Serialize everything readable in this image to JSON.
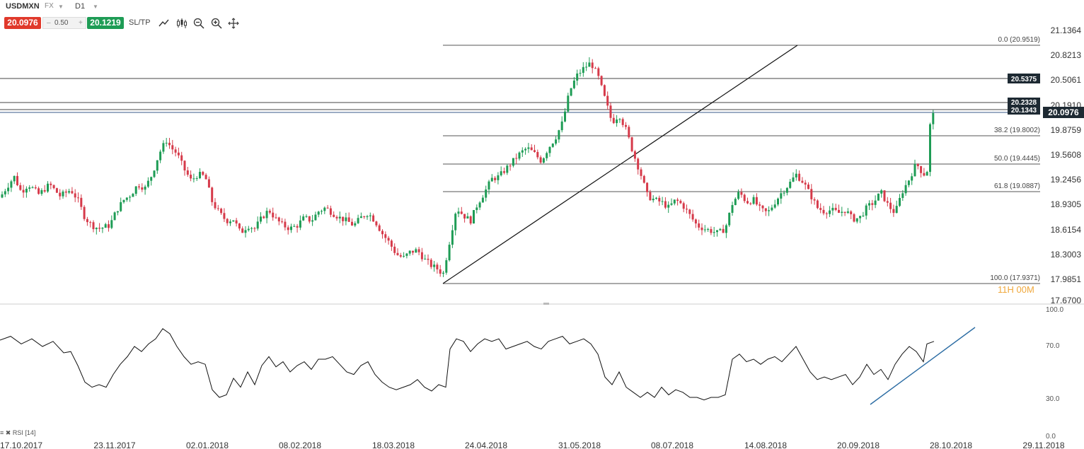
{
  "instrument": {
    "symbol": "USDMXN",
    "type": "FX",
    "timeframe": "D1"
  },
  "trade": {
    "sell_price": "20.0976",
    "quantity": "0.50",
    "buy_price": "20.1219",
    "sltp_label": "SL/TP",
    "minus": "–",
    "plus": "+"
  },
  "toolbar": {
    "tools": [
      "line-chart-icon",
      "candlestick-icon",
      "zoom-out-icon",
      "zoom-in-icon",
      "crosshair-move-icon"
    ]
  },
  "price_axis": {
    "ticks": [
      "21.1364",
      "20.8213",
      "20.5061",
      "20.1910",
      "19.8759",
      "19.5608",
      "19.2456",
      "18.9305",
      "18.6154",
      "18.3003",
      "17.9851",
      "17.6700"
    ]
  },
  "price_tags": {
    "current": "20.0976",
    "levels": [
      "20.5375",
      "20.2328",
      "20.1343"
    ]
  },
  "fibonacci": {
    "levels": [
      "0.0 (20.9519)",
      "38.2 (19.8002)",
      "50.0 (19.4445)",
      "61.8 (19.0887)",
      "100.0 (17.9371)"
    ]
  },
  "timer": "11H 00M",
  "rsi": {
    "label": "RSI [14]",
    "ticks": [
      "100.0",
      "70.0",
      "30.0",
      "0.0"
    ]
  },
  "date_axis": {
    "labels": [
      "17.10.2017",
      "23.11.2017",
      "02.01.2018",
      "08.02.2018",
      "18.03.2018",
      "24.04.2018",
      "31.05.2018",
      "08.07.2018",
      "14.08.2018",
      "20.09.2018",
      "28.10.2018",
      "29.11.2018"
    ]
  },
  "chart_data": {
    "type": "candlestick",
    "title": "USDMXN",
    "x_range": [
      "17.10.2017",
      "29.11.2018"
    ],
    "y_range": [
      17.67,
      21.1364
    ],
    "close_series": [
      [
        0,
        18.98
      ],
      [
        10,
        19.12
      ],
      [
        20,
        19.25
      ],
      [
        30,
        19.05
      ],
      [
        40,
        19.15
      ],
      [
        55,
        19.02
      ],
      [
        70,
        19.15
      ],
      [
        85,
        19.0
      ],
      [
        100,
        19.08
      ],
      [
        110,
        18.95
      ],
      [
        120,
        18.72
      ],
      [
        130,
        18.62
      ],
      [
        140,
        18.58
      ],
      [
        155,
        18.62
      ],
      [
        165,
        18.82
      ],
      [
        175,
        18.95
      ],
      [
        185,
        19.02
      ],
      [
        195,
        19.15
      ],
      [
        205,
        19.1
      ],
      [
        215,
        19.28
      ],
      [
        225,
        19.55
      ],
      [
        235,
        19.72
      ],
      [
        242,
        19.62
      ],
      [
        250,
        19.55
      ],
      [
        260,
        19.35
      ],
      [
        270,
        19.2
      ],
      [
        280,
        19.28
      ],
      [
        290,
        19.25
      ],
      [
        300,
        18.92
      ],
      [
        310,
        18.78
      ],
      [
        320,
        18.68
      ],
      [
        330,
        18.7
      ],
      [
        340,
        18.52
      ],
      [
        350,
        18.62
      ],
      [
        360,
        18.58
      ],
      [
        370,
        18.72
      ],
      [
        380,
        18.82
      ],
      [
        390,
        18.7
      ],
      [
        400,
        18.62
      ],
      [
        410,
        18.58
      ],
      [
        420,
        18.62
      ],
      [
        430,
        18.72
      ],
      [
        440,
        18.68
      ],
      [
        450,
        18.8
      ],
      [
        460,
        18.85
      ],
      [
        470,
        18.78
      ],
      [
        480,
        18.72
      ],
      [
        490,
        18.68
      ],
      [
        500,
        18.62
      ],
      [
        510,
        18.72
      ],
      [
        520,
        18.78
      ],
      [
        530,
        18.68
      ],
      [
        540,
        18.52
      ],
      [
        550,
        18.4
      ],
      [
        560,
        18.25
      ],
      [
        570,
        18.2
      ],
      [
        580,
        18.28
      ],
      [
        590,
        18.3
      ],
      [
        600,
        18.18
      ],
      [
        610,
        18.1
      ],
      [
        620,
        18.05
      ],
      [
        626,
        17.98
      ],
      [
        635,
        18.4
      ],
      [
        645,
        18.85
      ],
      [
        655,
        18.75
      ],
      [
        665,
        18.68
      ],
      [
        675,
        18.9
      ],
      [
        685,
        19.05
      ],
      [
        695,
        19.22
      ],
      [
        705,
        19.25
      ],
      [
        715,
        19.35
      ],
      [
        725,
        19.45
      ],
      [
        735,
        19.55
      ],
      [
        745,
        19.62
      ],
      [
        755,
        19.55
      ],
      [
        765,
        19.45
      ],
      [
        775,
        19.62
      ],
      [
        785,
        19.75
      ],
      [
        795,
        19.95
      ],
      [
        805,
        20.35
      ],
      [
        815,
        20.55
      ],
      [
        825,
        20.65
      ],
      [
        835,
        20.72
      ],
      [
        845,
        20.55
      ],
      [
        855,
        20.25
      ],
      [
        865,
        19.95
      ],
      [
        875,
        20.05
      ],
      [
        885,
        19.85
      ],
      [
        895,
        19.55
      ],
      [
        905,
        19.3
      ],
      [
        915,
        19.0
      ],
      [
        925,
        18.95
      ],
      [
        935,
        18.92
      ],
      [
        945,
        18.85
      ],
      [
        955,
        18.95
      ],
      [
        965,
        18.88
      ],
      [
        975,
        18.75
      ],
      [
        985,
        18.62
      ],
      [
        995,
        18.58
      ],
      [
        1005,
        18.55
      ],
      [
        1015,
        18.52
      ],
      [
        1025,
        18.58
      ],
      [
        1035,
        18.9
      ],
      [
        1045,
        19.05
      ],
      [
        1055,
        18.92
      ],
      [
        1065,
        18.95
      ],
      [
        1075,
        18.82
      ],
      [
        1085,
        18.78
      ],
      [
        1095,
        18.92
      ],
      [
        1105,
        19.05
      ],
      [
        1115,
        19.15
      ],
      [
        1125,
        19.28
      ],
      [
        1135,
        19.18
      ],
      [
        1145,
        19.02
      ],
      [
        1155,
        18.85
      ],
      [
        1165,
        18.8
      ],
      [
        1175,
        18.82
      ],
      [
        1185,
        18.78
      ],
      [
        1195,
        18.82
      ],
      [
        1205,
        18.7
      ],
      [
        1215,
        18.72
      ],
      [
        1225,
        18.85
      ],
      [
        1235,
        18.92
      ],
      [
        1245,
        19.05
      ],
      [
        1255,
        18.88
      ],
      [
        1265,
        18.78
      ],
      [
        1275,
        19.05
      ],
      [
        1285,
        19.22
      ],
      [
        1295,
        19.42
      ],
      [
        1305,
        19.28
      ],
      [
        1310,
        19.3
      ],
      [
        1315,
        19.98
      ],
      [
        1322,
        20.1
      ]
    ],
    "rsi_series": [
      [
        0,
        75
      ],
      [
        15,
        78
      ],
      [
        30,
        72
      ],
      [
        45,
        76
      ],
      [
        60,
        70
      ],
      [
        75,
        74
      ],
      [
        90,
        65
      ],
      [
        100,
        66
      ],
      [
        110,
        55
      ],
      [
        120,
        42
      ],
      [
        130,
        38
      ],
      [
        140,
        40
      ],
      [
        150,
        38
      ],
      [
        160,
        48
      ],
      [
        170,
        56
      ],
      [
        180,
        62
      ],
      [
        190,
        70
      ],
      [
        200,
        66
      ],
      [
        210,
        72
      ],
      [
        220,
        76
      ],
      [
        230,
        84
      ],
      [
        240,
        80
      ],
      [
        250,
        70
      ],
      [
        260,
        62
      ],
      [
        270,
        56
      ],
      [
        280,
        58
      ],
      [
        290,
        56
      ],
      [
        300,
        36
      ],
      [
        310,
        30
      ],
      [
        320,
        32
      ],
      [
        330,
        45
      ],
      [
        340,
        38
      ],
      [
        350,
        50
      ],
      [
        360,
        40
      ],
      [
        370,
        55
      ],
      [
        380,
        62
      ],
      [
        390,
        54
      ],
      [
        400,
        58
      ],
      [
        410,
        50
      ],
      [
        420,
        55
      ],
      [
        430,
        58
      ],
      [
        440,
        52
      ],
      [
        450,
        60
      ],
      [
        460,
        60
      ],
      [
        470,
        62
      ],
      [
        480,
        56
      ],
      [
        490,
        50
      ],
      [
        500,
        48
      ],
      [
        510,
        55
      ],
      [
        520,
        58
      ],
      [
        530,
        48
      ],
      [
        540,
        42
      ],
      [
        550,
        38
      ],
      [
        560,
        36
      ],
      [
        570,
        38
      ],
      [
        580,
        40
      ],
      [
        590,
        44
      ],
      [
        600,
        38
      ],
      [
        610,
        35
      ],
      [
        620,
        40
      ],
      [
        630,
        38
      ],
      [
        636,
        68
      ],
      [
        645,
        76
      ],
      [
        655,
        74
      ],
      [
        665,
        66
      ],
      [
        675,
        72
      ],
      [
        685,
        76
      ],
      [
        695,
        74
      ],
      [
        705,
        76
      ],
      [
        715,
        68
      ],
      [
        725,
        70
      ],
      [
        735,
        72
      ],
      [
        745,
        74
      ],
      [
        755,
        70
      ],
      [
        765,
        68
      ],
      [
        775,
        74
      ],
      [
        785,
        76
      ],
      [
        795,
        78
      ],
      [
        805,
        72
      ],
      [
        815,
        74
      ],
      [
        825,
        76
      ],
      [
        835,
        72
      ],
      [
        845,
        64
      ],
      [
        855,
        46
      ],
      [
        865,
        40
      ],
      [
        875,
        50
      ],
      [
        885,
        38
      ],
      [
        895,
        34
      ],
      [
        905,
        30
      ],
      [
        915,
        34
      ],
      [
        925,
        30
      ],
      [
        935,
        38
      ],
      [
        945,
        32
      ],
      [
        955,
        36
      ],
      [
        965,
        34
      ],
      [
        975,
        30
      ],
      [
        985,
        30
      ],
      [
        995,
        28
      ],
      [
        1005,
        30
      ],
      [
        1015,
        30
      ],
      [
        1025,
        32
      ],
      [
        1035,
        60
      ],
      [
        1045,
        64
      ],
      [
        1055,
        58
      ],
      [
        1065,
        60
      ],
      [
        1075,
        56
      ],
      [
        1085,
        60
      ],
      [
        1095,
        62
      ],
      [
        1105,
        58
      ],
      [
        1115,
        64
      ],
      [
        1125,
        70
      ],
      [
        1135,
        60
      ],
      [
        1145,
        50
      ],
      [
        1155,
        44
      ],
      [
        1165,
        46
      ],
      [
        1175,
        44
      ],
      [
        1185,
        46
      ],
      [
        1195,
        48
      ],
      [
        1205,
        40
      ],
      [
        1215,
        46
      ],
      [
        1225,
        56
      ],
      [
        1235,
        48
      ],
      [
        1245,
        52
      ],
      [
        1255,
        44
      ],
      [
        1265,
        56
      ],
      [
        1275,
        64
      ],
      [
        1285,
        70
      ],
      [
        1295,
        66
      ],
      [
        1305,
        58
      ],
      [
        1310,
        72
      ],
      [
        1320,
        74
      ]
    ]
  }
}
